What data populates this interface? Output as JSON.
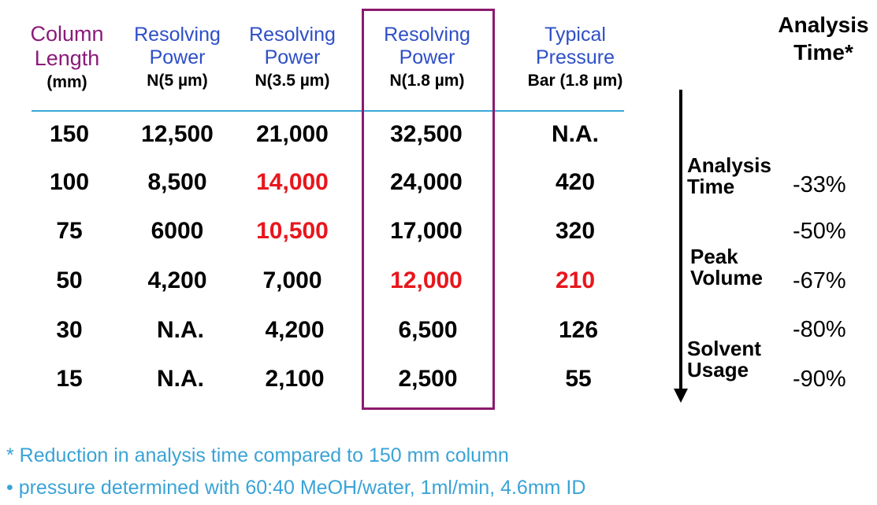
{
  "headers": {
    "column_length": {
      "line1": "Column",
      "line2": "Length",
      "line3": "(mm)"
    },
    "rp5": {
      "line1": "Resolving",
      "line2": "Power",
      "line3": "N(5 µm)"
    },
    "rp35": {
      "line1": "Resolving",
      "line2": "Power",
      "line3": "N(3.5 µm)"
    },
    "rp18": {
      "line1": "Resolving",
      "line2": "Power",
      "line3": "N(1.8 µm)"
    },
    "pressure": {
      "line1": "Typical",
      "line2": "Pressure",
      "line3": "Bar (1.8 µm)"
    },
    "analysis_time": {
      "line1": "Analysis",
      "line2": "Time*"
    }
  },
  "rows": [
    {
      "length": "150",
      "n5": "12,500",
      "n35": "21,000",
      "n18": "32,500",
      "pressure": "N.A."
    },
    {
      "length": "100",
      "n5": "8,500",
      "n35": "14,000",
      "n18": "24,000",
      "pressure": "420"
    },
    {
      "length": "75",
      "n5": "6000",
      "n35": "10,500",
      "n18": "17,000",
      "pressure": "320"
    },
    {
      "length": "50",
      "n5": "4,200",
      "n35": "7,000",
      "n18": "12,000",
      "pressure": "210"
    },
    {
      "length": "30",
      "n5": "N.A.",
      "n35": "4,200",
      "n18": "6,500",
      "pressure": "126"
    },
    {
      "length": "15",
      "n5": "N.A.",
      "n35": "2,100",
      "n18": "2,500",
      "pressure": "55"
    }
  ],
  "side_labels": {
    "analysis": {
      "line1": "Analysis",
      "line2": "Time"
    },
    "peak": {
      "line1": "Peak",
      "line2": "Volume"
    },
    "solvent": {
      "line1": "Solvent",
      "line2": "Usage"
    }
  },
  "percentages": [
    "-33%",
    "-50%",
    "-67%",
    "-80%",
    "-90%"
  ],
  "footnotes": {
    "note1": "* Reduction in analysis time compared to 150 mm column",
    "note2": "• pressure determined with 60:40 MeOH/water, 1ml/min, 4.6mm ID"
  },
  "colors": {
    "header_blue": "#2e4fc7",
    "header_purple": "#8a1a7a",
    "highlight_red": "#e8161c",
    "box_border": "#8c1a6e",
    "rule_blue": "#39a7d8",
    "footnote_blue": "#3aa3d6"
  }
}
